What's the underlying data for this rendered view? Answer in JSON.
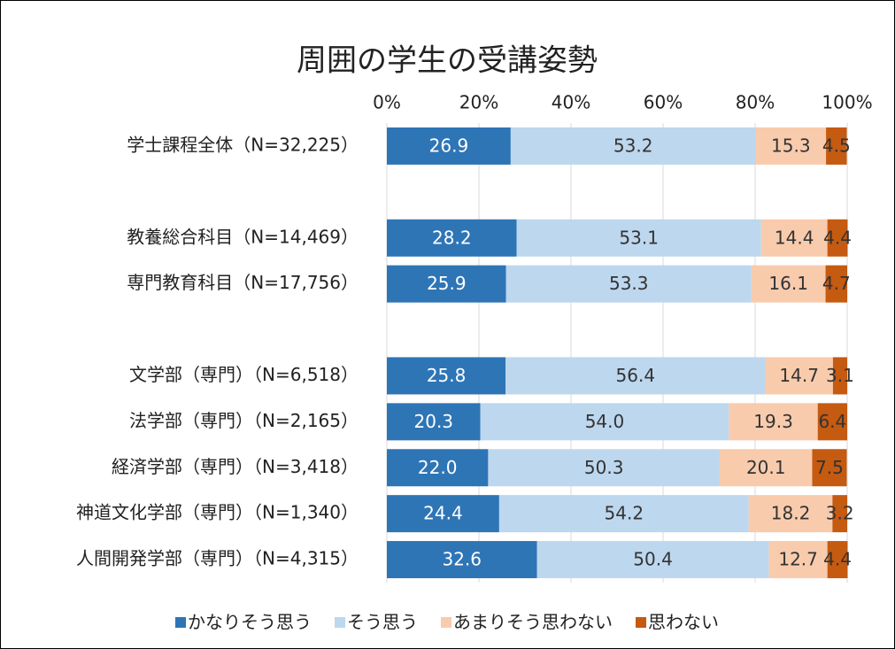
{
  "chart_data": {
    "type": "stacked-bar-horizontal",
    "title": "周囲の学生の受講姿勢",
    "categories": [
      "学士課程全体（N=32,225）",
      null,
      "教養総合科目（N=14,469）",
      "専門教育科目（N=17,756）",
      null,
      "文学部（専門）（N=6,518）",
      "法学部（専門）（N=2,165）",
      "経済学部（専門）（N=3,418）",
      "神道文化学部（専門）（N=1,340）",
      "人間開発学部（専門）（N=4,315）"
    ],
    "series": [
      {
        "name": "かなりそう思う",
        "color": "#2e75b6",
        "values": [
          26.9,
          null,
          28.2,
          25.9,
          null,
          25.8,
          20.3,
          22.0,
          24.4,
          32.6
        ],
        "value_labels": [
          "26.9",
          null,
          "28.2",
          "25.9",
          null,
          "25.8",
          "20.3",
          "22.0",
          "24.4",
          "32.6"
        ]
      },
      {
        "name": "そう思う",
        "color": "#bdd7ee",
        "values": [
          53.2,
          null,
          53.1,
          53.3,
          null,
          56.4,
          54.0,
          50.3,
          54.2,
          50.4
        ],
        "value_labels": [
          "53.2",
          null,
          "53.1",
          "53.3",
          null,
          "56.4",
          "54.0",
          "50.3",
          "54.2",
          "50.4"
        ]
      },
      {
        "name": "あまりそう思わない",
        "color": "#f8cbad",
        "values": [
          15.3,
          null,
          14.4,
          16.1,
          null,
          14.7,
          19.3,
          20.1,
          18.2,
          12.7
        ],
        "value_labels": [
          "15.3",
          null,
          "14.4",
          "16.1",
          null,
          "14.7",
          "19.3",
          "20.1",
          "18.2",
          "12.7"
        ]
      },
      {
        "name": "思わない",
        "color": "#c55a11",
        "values": [
          4.5,
          null,
          4.4,
          4.7,
          null,
          3.1,
          6.4,
          7.5,
          3.2,
          4.4
        ],
        "value_labels": [
          "4.5",
          null,
          "4.4",
          "4.7",
          null,
          "3.1",
          "6.4",
          "7.5",
          "3.2",
          "4.4"
        ]
      }
    ],
    "xlim": [
      0,
      100
    ],
    "xticks": [
      {
        "value": 0,
        "label": "0%"
      },
      {
        "value": 20,
        "label": "20%"
      },
      {
        "value": 40,
        "label": "40%"
      },
      {
        "value": 60,
        "label": "60%"
      },
      {
        "value": 80,
        "label": "80%"
      },
      {
        "value": 100,
        "label": "100%"
      }
    ],
    "grid": true,
    "legend": "bottom"
  }
}
